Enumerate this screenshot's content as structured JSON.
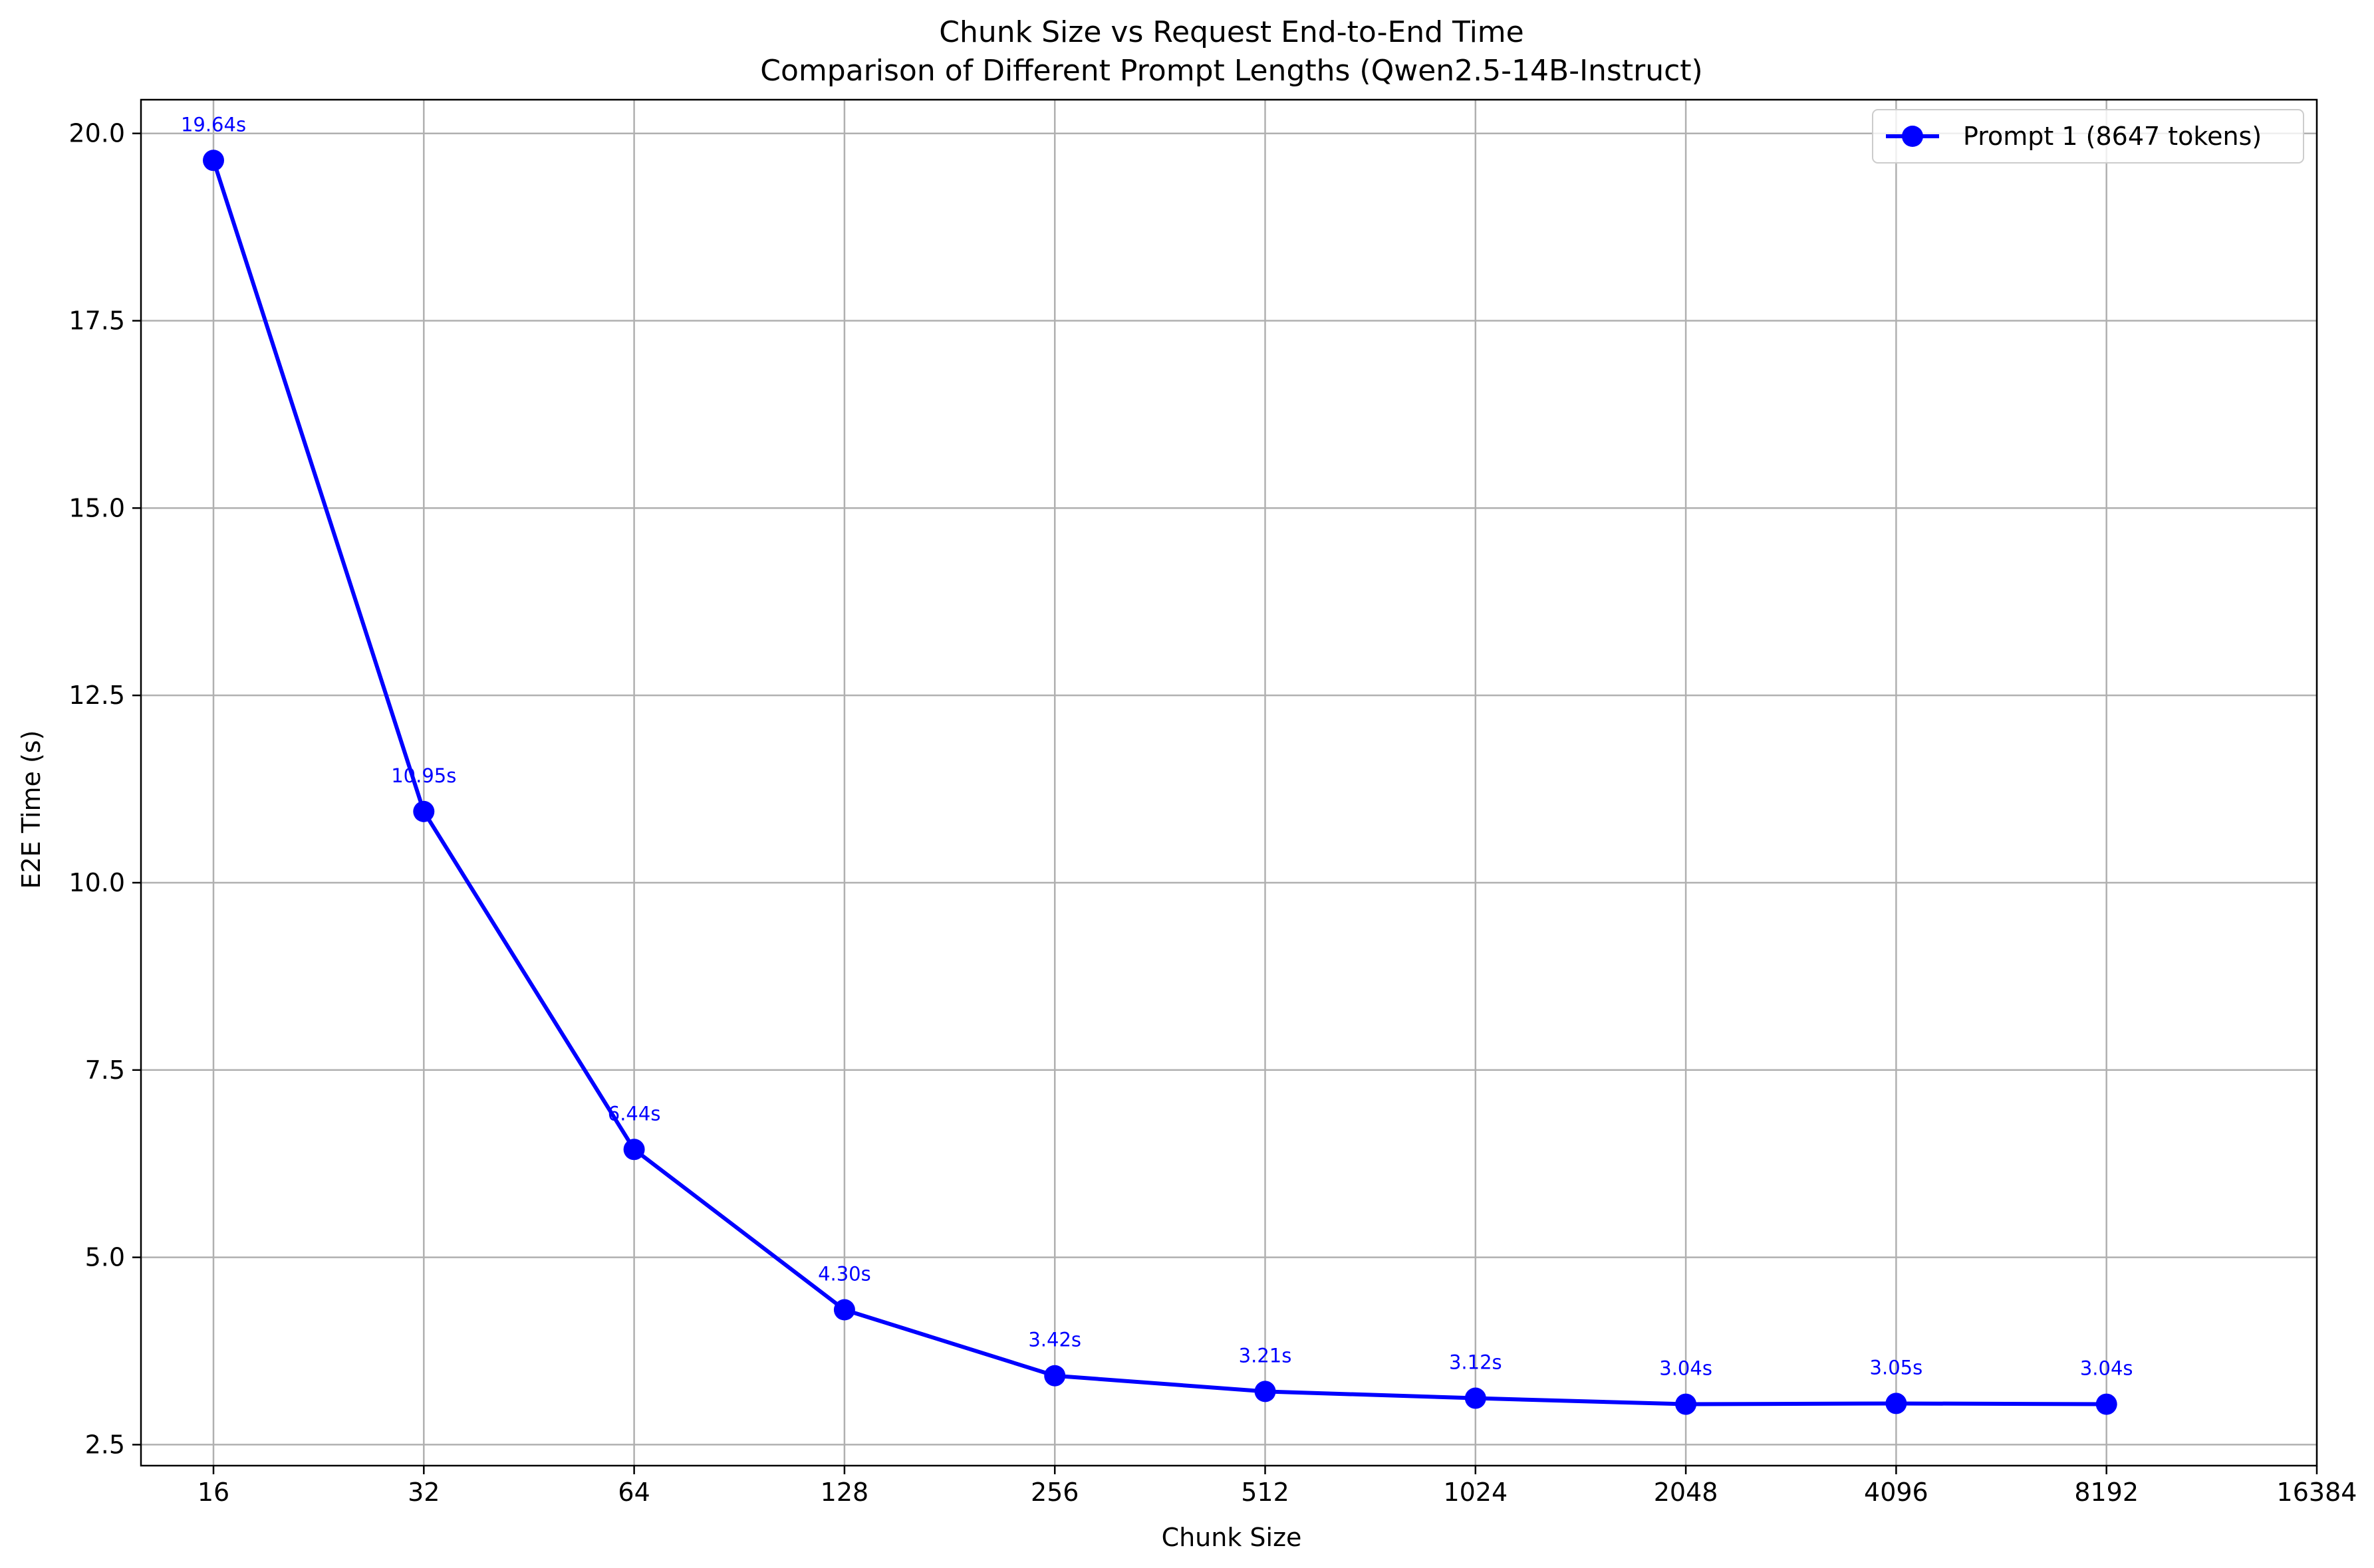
{
  "chart_data": {
    "type": "line",
    "title": "Chunk Size vs Request End-to-End Time",
    "subtitle": "Comparison of Different Prompt Lengths (Qwen2.5-14B-Instruct)",
    "xlabel": "Chunk Size",
    "ylabel": "E2E Time (s)",
    "x_scale": "log2",
    "xlim": [
      12.6,
      16384
    ],
    "ylim": [
      2.22,
      20.45
    ],
    "x_ticks": [
      "16",
      "32",
      "64",
      "128",
      "256",
      "512",
      "1024",
      "2048",
      "4096",
      "8192",
      "16384"
    ],
    "y_ticks": [
      "2.5",
      "5.0",
      "7.5",
      "10.0",
      "12.5",
      "15.0",
      "17.5",
      "20.0"
    ],
    "grid": true,
    "legend_position": "top-right",
    "series": [
      {
        "name": "Prompt 1 (8647 tokens)",
        "color": "#0000ff",
        "marker": "circle",
        "x": [
          16,
          32,
          64,
          128,
          256,
          512,
          1024,
          2048,
          4096,
          8192
        ],
        "y": [
          19.64,
          10.95,
          6.44,
          4.3,
          3.42,
          3.21,
          3.12,
          3.04,
          3.05,
          3.04
        ],
        "labels": [
          "19.64s",
          "10.95s",
          "6.44s",
          "4.30s",
          "3.42s",
          "3.21s",
          "3.12s",
          "3.04s",
          "3.05s",
          "3.04s"
        ]
      }
    ]
  }
}
